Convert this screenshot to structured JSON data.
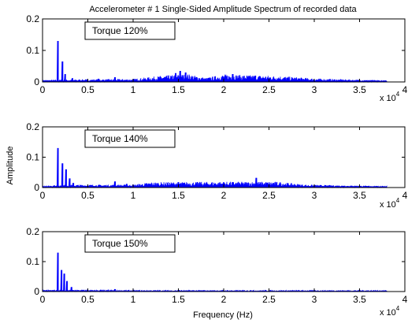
{
  "figure": {
    "title": "Accelerometer # 1  Single-Sided Amplitude Spectrum of recorded data",
    "ylabel": "Amplitude",
    "xlabel": "Frequency (Hz)",
    "x_exponent_base": "x 10",
    "x_exponent_power": "4"
  },
  "colors": {
    "series": "#0000ff",
    "axes": "#000000",
    "background": "#ffffff"
  },
  "chart_data": [
    {
      "type": "line",
      "annotation": "Torque 120%",
      "x_unit_multiplier": 10000,
      "xlim": [
        0,
        4
      ],
      "ylim": [
        0,
        0.2
      ],
      "xticks": [
        "0",
        "0.5",
        "1",
        "1.5",
        "2",
        "2.5",
        "3",
        "3.5",
        "4"
      ],
      "yticks": [
        "0",
        "0.1",
        "0.2"
      ],
      "series": [
        {
          "peaks": [
            [
              0.17,
              0.13
            ],
            [
              0.22,
              0.065
            ],
            [
              0.25,
              0.025
            ],
            [
              0.33,
              0.012
            ],
            [
              0.62,
              0.01
            ],
            [
              0.8,
              0.015
            ],
            [
              1.47,
              0.028
            ],
            [
              1.52,
              0.035
            ],
            [
              1.58,
              0.03
            ],
            [
              2.1,
              0.025
            ],
            [
              2.35,
              0.02
            ]
          ],
          "floor": [
            [
              0,
              0.004
            ],
            [
              0.3,
              0.005
            ],
            [
              1.0,
              0.006
            ],
            [
              1.3,
              0.012
            ],
            [
              1.6,
              0.016
            ],
            [
              1.8,
              0.008
            ],
            [
              2.0,
              0.015
            ],
            [
              2.6,
              0.012
            ],
            [
              3.0,
              0.007
            ],
            [
              3.8,
              0.003
            ]
          ]
        }
      ]
    },
    {
      "type": "line",
      "annotation": "Torque 140%",
      "x_unit_multiplier": 10000,
      "xlim": [
        0,
        4
      ],
      "ylim": [
        0,
        0.2
      ],
      "xticks": [
        "0",
        "0.5",
        "1",
        "1.5",
        "2",
        "2.5",
        "3",
        "3.5",
        "4"
      ],
      "yticks": [
        "0",
        "0.1",
        "0.2"
      ],
      "series": [
        {
          "peaks": [
            [
              0.17,
              0.13
            ],
            [
              0.22,
              0.08
            ],
            [
              0.26,
              0.06
            ],
            [
              0.3,
              0.03
            ],
            [
              0.34,
              0.015
            ],
            [
              0.8,
              0.02
            ],
            [
              0.93,
              0.012
            ],
            [
              1.5,
              0.018
            ],
            [
              2.0,
              0.017
            ],
            [
              2.36,
              0.032
            ],
            [
              2.55,
              0.015
            ]
          ],
          "floor": [
            [
              0,
              0.004
            ],
            [
              0.3,
              0.006
            ],
            [
              1.0,
              0.006
            ],
            [
              1.2,
              0.011
            ],
            [
              2.0,
              0.012
            ],
            [
              2.6,
              0.012
            ],
            [
              2.9,
              0.006
            ],
            [
              3.8,
              0.003
            ]
          ]
        }
      ]
    },
    {
      "type": "line",
      "annotation": "Torque 150%",
      "x_unit_multiplier": 10000,
      "xlim": [
        0,
        4
      ],
      "ylim": [
        0,
        0.2
      ],
      "xticks": [
        "0",
        "0.5",
        "1",
        "1.5",
        "2",
        "2.5",
        "3",
        "3.5",
        "4"
      ],
      "yticks": [
        "0",
        "0.1",
        "0.2"
      ],
      "series": [
        {
          "peaks": [
            [
              0.17,
              0.13
            ],
            [
              0.21,
              0.072
            ],
            [
              0.24,
              0.06
            ],
            [
              0.27,
              0.035
            ],
            [
              0.32,
              0.015
            ],
            [
              0.8,
              0.008
            ],
            [
              1.5,
              0.005
            ],
            [
              2.3,
              0.004
            ]
          ],
          "floor": [
            [
              0,
              0.003
            ],
            [
              0.4,
              0.003
            ],
            [
              1.0,
              0.002
            ],
            [
              3.8,
              0.002
            ]
          ]
        }
      ]
    }
  ]
}
